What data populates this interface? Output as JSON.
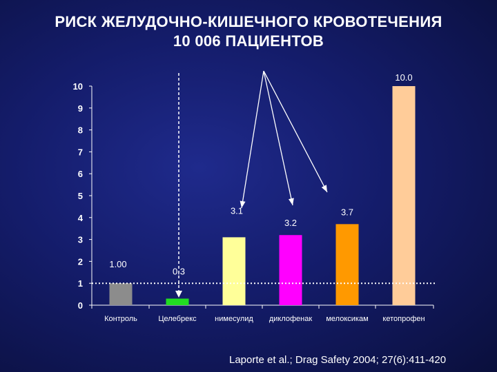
{
  "slide": {
    "title_line1": "РИСК ЖЕЛУДОЧНО-КИШЕЧНОГО КРОВОТЕЧЕНИЯ",
    "title_line2": "10 006 ПАЦИЕНТОВ",
    "citation": "Laporte et al.; Drag Safety 2004; 27(6):411-420"
  },
  "chart_data": {
    "type": "bar",
    "title": "",
    "xlabel": "",
    "ylabel": "",
    "ylim": [
      0,
      10
    ],
    "yticks": [
      0,
      1,
      2,
      3,
      4,
      5,
      6,
      7,
      8,
      9,
      10
    ],
    "categories": [
      "Контроль",
      "Целебрекс",
      "нимесулид",
      "диклофенак",
      "мелоксикам",
      "кетопрофен"
    ],
    "values": [
      1.0,
      0.3,
      3.1,
      3.2,
      3.7,
      10.0
    ],
    "data_labels": [
      "1.00",
      "0.3",
      "3.1",
      "3.2",
      "3.7",
      "10.0"
    ],
    "colors": [
      "#8c8c8c",
      "#22dd22",
      "#ffff99",
      "#ff00ff",
      "#ff9900",
      "#ffcc99"
    ],
    "reference_line_y": 1.0,
    "grid": false,
    "legend": "none"
  }
}
